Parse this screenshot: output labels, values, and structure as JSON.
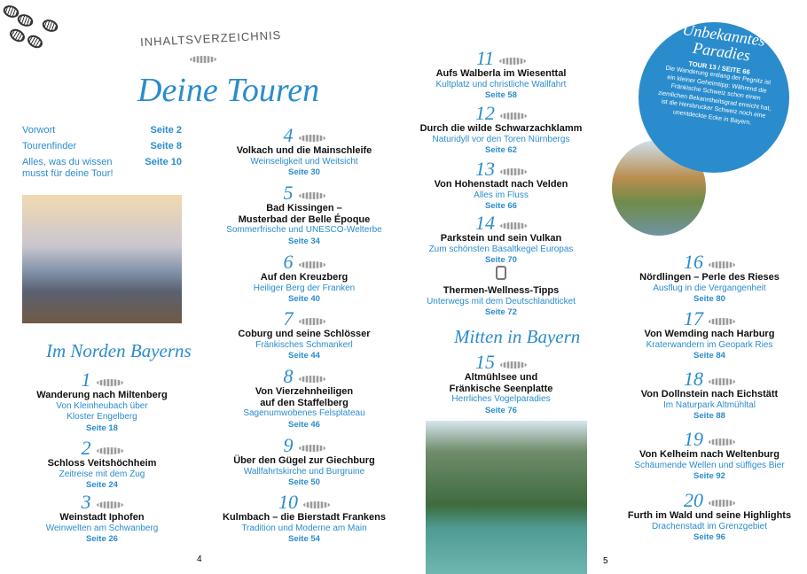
{
  "header": {
    "label": "INHALTSVERZEICHNIS",
    "title": "Deine Touren"
  },
  "front": [
    {
      "title": [
        "Vorwort"
      ],
      "page": "Seite 2"
    },
    {
      "title": [
        "Tourenfinder"
      ],
      "page": "Seite 8"
    },
    {
      "title": [
        "Alles, was du wissen",
        "musst für deine Tour!"
      ],
      "page": "Seite 10"
    }
  ],
  "sections": [
    "Im Norden Bayerns",
    "Mitten in Bayern"
  ],
  "tours": [
    {
      "number": "1",
      "title": [
        "Wanderung nach Miltenberg"
      ],
      "subtitle": [
        "Von Kleinheubach über",
        "Kloster Engelberg"
      ],
      "page": "Seite 18"
    },
    {
      "number": "2",
      "title": [
        "Schloss Veitshöchheim"
      ],
      "subtitle": [
        "Zeitreise mit dem Zug"
      ],
      "page": "Seite 24"
    },
    {
      "number": "3",
      "title": [
        "Weinstadt Iphofen"
      ],
      "subtitle": [
        "Weinwelten am Schwanberg"
      ],
      "page": "Seite 26"
    },
    {
      "number": "4",
      "title": [
        "Volkach und die Mainschleife"
      ],
      "subtitle": [
        "Weinseligkeit und Weitsicht"
      ],
      "page": "Seite 30"
    },
    {
      "number": "5",
      "title": [
        "Bad Kissingen –",
        "Musterbad der Belle Époque"
      ],
      "subtitle": [
        "Sommerfrische und UNESCO-Welterbe"
      ],
      "page": "Seite 34"
    },
    {
      "number": "6",
      "title": [
        "Auf den Kreuzberg"
      ],
      "subtitle": [
        "Heiliger Berg der Franken"
      ],
      "page": "Seite 40"
    },
    {
      "number": "7",
      "title": [
        "Coburg und seine Schlösser"
      ],
      "subtitle": [
        "Fränkisches Schmankerl"
      ],
      "page": "Seite 44"
    },
    {
      "number": "8",
      "title": [
        "Von Vierzehnheiligen",
        "auf den Staffelberg"
      ],
      "subtitle": [
        "Sagenumwobenes Felsplateau"
      ],
      "page": "Seite 46"
    },
    {
      "number": "9",
      "title": [
        "Über den Gügel zur Giechburg"
      ],
      "subtitle": [
        "Wallfahrtskirche und Burgruine"
      ],
      "page": "Seite 50"
    },
    {
      "number": "10",
      "title": [
        "Kulmbach – die Bierstadt Frankens"
      ],
      "subtitle": [
        "Tradition und Moderne am Main"
      ],
      "page": "Seite 54"
    },
    {
      "number": "11",
      "title": [
        "Aufs Walberla im Wiesenttal"
      ],
      "subtitle": [
        "Kultplatz und christliche Wallfahrt"
      ],
      "page": "Seite 58"
    },
    {
      "number": "12",
      "title": [
        "Durch die wilde Schwarzachklamm"
      ],
      "subtitle": [
        "Naturidyll vor den Toren Nürnbergs"
      ],
      "page": "Seite 62"
    },
    {
      "number": "13",
      "title": [
        "Von Hohenstadt nach Velden"
      ],
      "subtitle": [
        "Alles im Fluss"
      ],
      "page": "Seite 66"
    },
    {
      "number": "14",
      "title": [
        "Parkstein und sein Vulkan"
      ],
      "subtitle": [
        "Zum schönsten Basaltkegel Europas"
      ],
      "page": "Seite 70"
    },
    {
      "number": "15",
      "title": [
        "Altmühlsee und",
        "Fränkische Seenplatte"
      ],
      "subtitle": [
        "Herrliches Vogelparadies"
      ],
      "page": "Seite 76"
    },
    {
      "number": "16",
      "title": [
        "Nördlingen – Perle des Rieses"
      ],
      "subtitle": [
        "Ausflug in die Vergangenheit"
      ],
      "page": "Seite 80"
    },
    {
      "number": "17",
      "title": [
        "Von Wemding nach Harburg"
      ],
      "subtitle": [
        "Kraterwandern im Geopark Ries"
      ],
      "page": "Seite 84"
    },
    {
      "number": "18",
      "title": [
        "Von Dollnstein nach Eichstätt"
      ],
      "subtitle": [
        "Im Naturpark Altmühltal"
      ],
      "page": "Seite 88"
    },
    {
      "number": "19",
      "title": [
        "Von Kelheim nach Weltenburg"
      ],
      "subtitle": [
        "Schäumende Wellen und süffiges Bier"
      ],
      "page": "Seite 92"
    },
    {
      "number": "20",
      "title": [
        "Furth im Wald und seine Highlights"
      ],
      "subtitle": [
        "Drachenstadt im Grenzgebiet"
      ],
      "page": "Seite 96"
    }
  ],
  "extra": {
    "title": [
      "Thermen-Wellness-Tipps"
    ],
    "subtitle": [
      "Unterwegs mit dem Deutschlandticket"
    ],
    "page": "Seite 72"
  },
  "callout": {
    "title": [
      "Unbekanntes",
      "Paradies"
    ],
    "tour": "TOUR 13 / SEITE 66",
    "text": "Die Wanderung entlang der Pegnitz ist ein kleiner Geheimtipp: Während die Fränkische Schweiz schon einen ziemlichen Bekanntheitsgrad erreicht hat, ist die Hersbrucker Schweiz noch eine unentdeckte Ecke in Bayern."
  },
  "page_numbers": [
    "4",
    "5"
  ]
}
